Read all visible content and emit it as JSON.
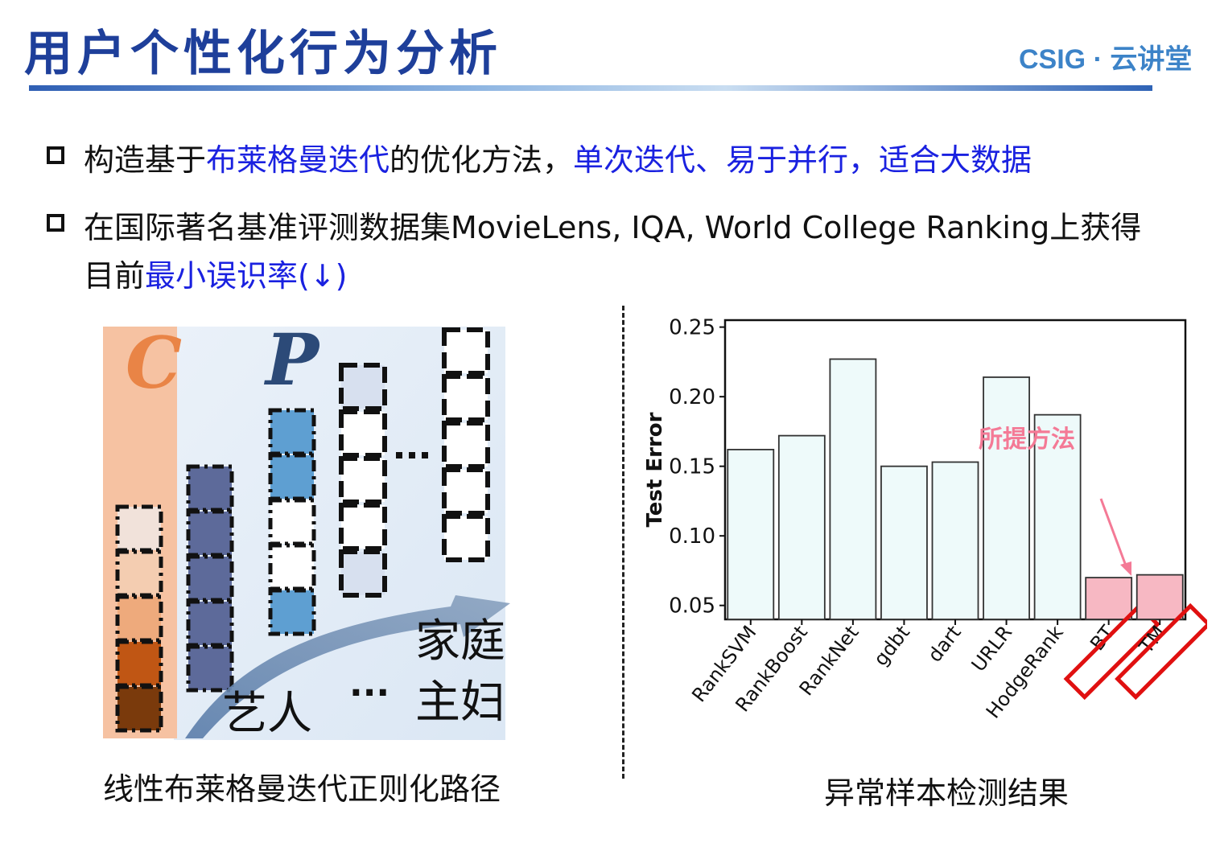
{
  "header": {
    "title": "用户个性化行为分析",
    "logo": "CSIG · 云讲堂"
  },
  "bullets": [
    {
      "parts": [
        {
          "text": "构造基于",
          "highlight": false
        },
        {
          "text": "布莱格曼迭代",
          "highlight": true
        },
        {
          "text": "的优化方法，",
          "highlight": false
        },
        {
          "text": "单次迭代、易于并行，适合大数据",
          "highlight": true
        }
      ]
    },
    {
      "line1": "在国际著名基准评测数据集MovieLens, IQA, World College Ranking上获得",
      "line2_plain": "目前",
      "line2_highlight": "最小误识率(↓)"
    }
  ],
  "left_figure": {
    "label_c": "C",
    "label_p": "P",
    "word_artist": "艺人",
    "ellipsis": "···",
    "word_family": "家庭",
    "word_housewife": "主妇",
    "caption": "线性布莱格曼迭代正则化路径"
  },
  "chart_data": {
    "type": "bar",
    "ylabel": "Test Error",
    "xlabel": "",
    "ylim": [
      0.04,
      0.255
    ],
    "yticks": [
      0.05,
      0.1,
      0.15,
      0.2,
      0.25
    ],
    "ytick_labels": [
      "0.05",
      "0.10",
      "0.15",
      "0.20",
      "0.25"
    ],
    "categories": [
      "RankSVM",
      "RankBoost",
      "RankNet",
      "gdbt",
      "dart",
      "URLR",
      "HodgeRank",
      "BT",
      "TM"
    ],
    "values": [
      0.162,
      0.172,
      0.227,
      0.15,
      0.153,
      0.214,
      0.187,
      0.07,
      0.072
    ],
    "highlighted": [
      "BT",
      "TM"
    ],
    "colors": {
      "normal_fill": "#eefafa",
      "highlight_fill": "#f7b8c3",
      "box": "#e01010",
      "annotation": "#f47a96"
    },
    "annotation": "所提方法",
    "caption": "异常样本检测结果"
  }
}
